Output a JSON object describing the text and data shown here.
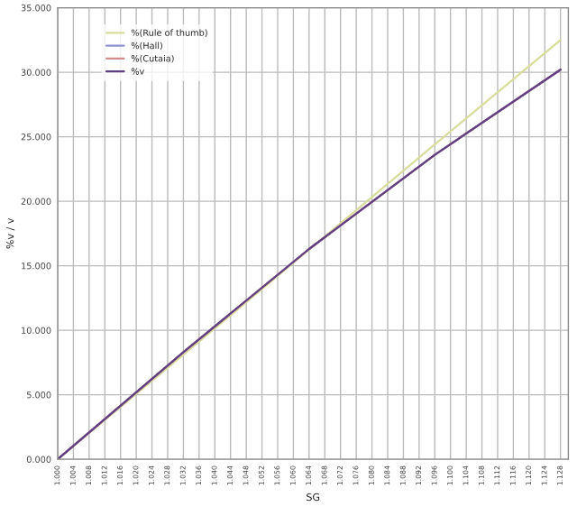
{
  "chart_data": {
    "type": "line",
    "xlabel": "SG",
    "ylabel": "%v / v",
    "x": [
      1.0,
      1.032,
      1.064,
      1.096,
      1.128
    ],
    "series": [
      {
        "name": "%(Rule of thumb)",
        "color": "#d8dc9c",
        "values": [
          0,
          8.1,
          16.25,
          24.4,
          32.5
        ]
      },
      {
        "name": "%(Hall)",
        "color": "#9090d0",
        "values": [
          0,
          8.3,
          16.3,
          23.6,
          30.2
        ]
      },
      {
        "name": "%(Cutaia)",
        "color": "#d09090",
        "values": [
          0,
          8.3,
          16.3,
          23.6,
          30.2
        ]
      },
      {
        "name": "%v",
        "color": "#604080",
        "values": [
          0,
          8.3,
          16.3,
          23.6,
          30.2
        ]
      }
    ],
    "xlim": [
      1.0,
      1.13
    ],
    "xticks": [
      {
        "value": 1.0,
        "label": "1.000"
      },
      {
        "value": 1.004,
        "label": "1.004"
      },
      {
        "value": 1.008,
        "label": "1.008"
      },
      {
        "value": 1.012,
        "label": "1.012"
      },
      {
        "value": 1.016,
        "label": "1.016"
      },
      {
        "value": 1.02,
        "label": "1.020"
      },
      {
        "value": 1.024,
        "label": "1.024"
      },
      {
        "value": 1.028,
        "label": "1.028"
      },
      {
        "value": 1.032,
        "label": "1.032"
      },
      {
        "value": 1.036,
        "label": "1.036"
      },
      {
        "value": 1.04,
        "label": "1.040"
      },
      {
        "value": 1.044,
        "label": "1.044"
      },
      {
        "value": 1.048,
        "label": "1.048"
      },
      {
        "value": 1.052,
        "label": "1.052"
      },
      {
        "value": 1.056,
        "label": "1.056"
      },
      {
        "value": 1.06,
        "label": "1.060"
      },
      {
        "value": 1.064,
        "label": "1.064"
      },
      {
        "value": 1.068,
        "label": "1.068"
      },
      {
        "value": 1.072,
        "label": "1.072"
      },
      {
        "value": 1.076,
        "label": "1.076"
      },
      {
        "value": 1.08,
        "label": "1.080"
      },
      {
        "value": 1.084,
        "label": "1.084"
      },
      {
        "value": 1.088,
        "label": "1.088"
      },
      {
        "value": 1.092,
        "label": "1.092"
      },
      {
        "value": 1.096,
        "label": "1.096"
      },
      {
        "value": 1.1,
        "label": "1.100"
      },
      {
        "value": 1.104,
        "label": "1.104"
      },
      {
        "value": 1.108,
        "label": "1.108"
      },
      {
        "value": 1.112,
        "label": "1.112"
      },
      {
        "value": 1.116,
        "label": "1.116"
      },
      {
        "value": 1.12,
        "label": "1.120"
      },
      {
        "value": 1.124,
        "label": "1.124"
      },
      {
        "value": 1.128,
        "label": "1.128"
      }
    ],
    "ylim": [
      0,
      35
    ],
    "yticks": [
      {
        "value": 0,
        "label": "0.000"
      },
      {
        "value": 5,
        "label": "5.000"
      },
      {
        "value": 10,
        "label": "10.000"
      },
      {
        "value": 15,
        "label": "15.000"
      },
      {
        "value": 20,
        "label": "20.000"
      },
      {
        "value": 25,
        "label": "25.000"
      },
      {
        "value": 30,
        "label": "30.000"
      },
      {
        "value": 35,
        "label": "35.000"
      }
    ],
    "grid": true,
    "legend": "top left",
    "marker": "none",
    "line_style": "solid"
  }
}
